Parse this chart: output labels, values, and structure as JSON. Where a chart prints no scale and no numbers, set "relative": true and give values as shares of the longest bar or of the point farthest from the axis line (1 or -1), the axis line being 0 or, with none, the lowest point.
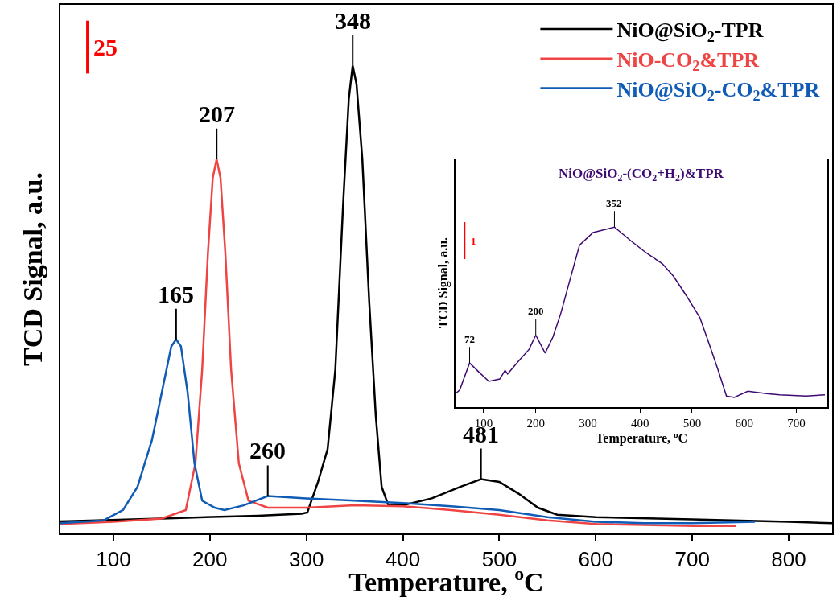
{
  "chart_data": [
    {
      "type": "line",
      "xlabel": "Temperature, $^{o}$C",
      "ylabel": "TCD Signal, a.u.",
      "relative": true,
      "xlim": [
        45,
        845
      ],
      "xticks": [
        100,
        200,
        300,
        400,
        500,
        600,
        700,
        800
      ],
      "tick_labels": "x",
      "legend": "top right",
      "marker": "none",
      "line_style": "solid",
      "series": [
        {
          "name": "NiO@SiO$_{2}$-TPR",
          "color": "#000000",
          "x": [
            45,
            150,
            250,
            295,
            301,
            312,
            322,
            330,
            338,
            344,
            348,
            352,
            358,
            365,
            372,
            378,
            385,
            400,
            430,
            460,
            481,
            500,
            520,
            540,
            560,
            600,
            700,
            800,
            845
          ],
          "values": [
            0.026,
            0.032,
            0.038,
            0.042,
            0.045,
            0.11,
            0.18,
            0.35,
            0.7,
            0.93,
            1.0,
            0.96,
            0.8,
            0.5,
            0.25,
            0.1,
            0.06,
            0.06,
            0.075,
            0.1,
            0.116,
            0.11,
            0.085,
            0.055,
            0.04,
            0.035,
            0.03,
            0.025,
            0.022
          ]
        },
        {
          "name": "NiO-CO$_{2}$&TPR",
          "color": "#ef4444",
          "x": [
            45,
            100,
            150,
            175,
            185,
            192,
            198,
            203,
            207,
            211,
            216,
            222,
            230,
            240,
            260,
            300,
            350,
            400,
            450,
            500,
            550,
            600,
            650,
            700,
            745
          ],
          "values": [
            0.02,
            0.025,
            0.032,
            0.05,
            0.15,
            0.35,
            0.6,
            0.76,
            0.8,
            0.76,
            0.6,
            0.35,
            0.15,
            0.07,
            0.055,
            0.055,
            0.06,
            0.058,
            0.05,
            0.04,
            0.028,
            0.02,
            0.018,
            0.016,
            0.016
          ]
        },
        {
          "name": "NiO@SiO$_{2}$-CO$_{2}$&TPR",
          "color": "#0f5bb5",
          "x": [
            45,
            90,
            110,
            125,
            140,
            152,
            160,
            165,
            170,
            177,
            184,
            192,
            205,
            215,
            235,
            260,
            300,
            350,
            400,
            450,
            500,
            550,
            600,
            650,
            700,
            765
          ],
          "values": [
            0.022,
            0.028,
            0.05,
            0.1,
            0.2,
            0.32,
            0.4,
            0.415,
            0.4,
            0.3,
            0.15,
            0.07,
            0.055,
            0.05,
            0.06,
            0.08,
            0.075,
            0.07,
            0.065,
            0.058,
            0.05,
            0.035,
            0.025,
            0.022,
            0.022,
            0.025
          ]
        }
      ],
      "annotations": [
        "25",
        {
          "text": "348",
          "x": 348,
          "y": 1.0
        },
        {
          "text": "207",
          "x": 207,
          "y": 0.8
        },
        {
          "text": "165",
          "x": 165,
          "y": 0.415
        },
        {
          "text": "260",
          "x": 260,
          "y": 0.08
        },
        {
          "text": "481",
          "x": 481,
          "y": 0.116
        }
      ]
    },
    {
      "type": "line",
      "title": "NiO@SiO$_{2}$-(CO$_{2}$+H$_{2}$)&TPR",
      "xlabel": "Temperature, $^{o}$C",
      "ylabel": "TCD Signal, a.u.",
      "relative": true,
      "xlim": [
        46,
        760
      ],
      "xticks": [
        100,
        200,
        300,
        400,
        500,
        600,
        700
      ],
      "tick_labels": "x",
      "marker": "none",
      "line_style": "solid",
      "series": [
        {
          "color": "#3f0a72",
          "x": [
            46,
            54,
            73,
            90,
            110,
            131,
            141,
            146,
            166,
            187,
            200,
            218,
            233,
            248,
            264,
            284,
            310,
            351,
            382,
            412,
            443,
            464,
            489,
            515,
            535,
            551,
            566,
            581,
            607,
            643,
            668,
            719,
            755
          ],
          "values": [
            0.075,
            0.095,
            0.245,
            0.197,
            0.143,
            0.156,
            0.204,
            0.184,
            0.252,
            0.32,
            0.4,
            0.3,
            0.39,
            0.52,
            0.69,
            0.9,
            0.97,
            1.0,
            0.925,
            0.857,
            0.796,
            0.728,
            0.619,
            0.497,
            0.333,
            0.197,
            0.061,
            0.054,
            0.088,
            0.075,
            0.068,
            0.061,
            0.068
          ]
        }
      ],
      "annotations": [
        "1",
        {
          "text": "72",
          "x": 73,
          "y": 0.245
        },
        {
          "text": "200",
          "x": 200,
          "y": 0.4
        },
        {
          "text": "352",
          "x": 351,
          "y": 1.0
        }
      ]
    }
  ]
}
